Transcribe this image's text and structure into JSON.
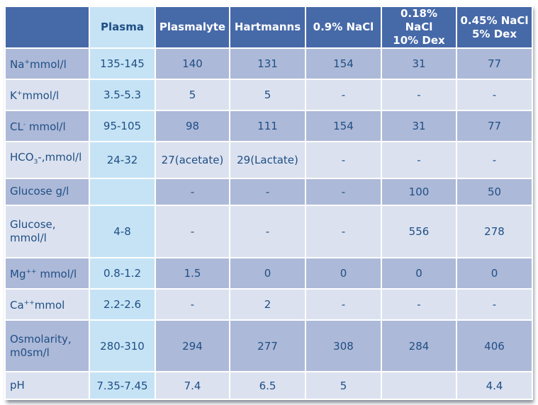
{
  "table": {
    "headers": [
      "",
      "Plasma",
      "Plasmalyte",
      "Hartmanns",
      "0.9% NaCl",
      "0.18% NaCl\n10% Dex",
      "0.45% NaCl\n5% Dex"
    ],
    "header_lines": {
      "h5a": "0.18% NaCl",
      "h5b": "10% Dex",
      "h6a": "0.45% NaCl",
      "h6b": "5% Dex"
    },
    "rows": [
      {
        "label_base": "Na",
        "label_sup": "+",
        "label_sub": "",
        "label_rest": "mmol/l",
        "cells": [
          "135-145",
          "140",
          "131",
          "154",
          "31",
          "77"
        ]
      },
      {
        "label_base": "K",
        "label_sup": "+",
        "label_sub": "",
        "label_rest": "mmol/l",
        "cells": [
          "3.5-5.3",
          "5",
          "5",
          "-",
          "-",
          "-"
        ]
      },
      {
        "label_base": "CL",
        "label_sup": "-",
        "label_sub": "",
        "label_rest": " mmol/l",
        "cells": [
          "95-105",
          "98",
          "111",
          "154",
          "31",
          "77"
        ]
      },
      {
        "label_base": "HCO",
        "label_sup": "",
        "label_sub": "3",
        "label_rest": "-,mmol/l",
        "cells": [
          "24-32",
          "27(acetate)",
          "29(Lactate)",
          "-",
          "-",
          "-"
        ]
      },
      {
        "label_base": "Glucose g/l",
        "label_sup": "",
        "label_sub": "",
        "label_rest": "",
        "cells": [
          "",
          "-",
          "-",
          "-",
          "100",
          "50"
        ]
      },
      {
        "label_base": "Glucose,",
        "label_sup": "",
        "label_sub": "",
        "label_rest": "mmol/l",
        "cells": [
          "4-8",
          "-",
          "-",
          "-",
          "556",
          "278"
        ]
      },
      {
        "label_base": "Mg",
        "label_sup": "++",
        "label_sub": "",
        "label_rest": " mmol/l",
        "cells": [
          "0.8-1.2",
          "1.5",
          "0",
          "0",
          "0",
          "0"
        ]
      },
      {
        "label_base": "Ca",
        "label_sup": "++",
        "label_sub": "",
        "label_rest": "mmol",
        "cells": [
          "2.2-2.6",
          "-",
          "2",
          "-",
          "-",
          "-"
        ]
      },
      {
        "label_base": "Osmolarity,",
        "label_sup": "",
        "label_sub": "",
        "label_rest": "m0sm/l",
        "cells": [
          "280-310",
          "294",
          "277",
          "308",
          "284",
          "406"
        ]
      },
      {
        "label_base": "pH",
        "label_sup": "",
        "label_sub": "",
        "label_rest": "",
        "cells": [
          "7.35-7.45",
          "7.4",
          "6.5",
          "5",
          "",
          "4.4"
        ]
      }
    ]
  },
  "colors": {
    "header_bg": "#4669a8",
    "plasma_col_bg": "#c5e3f5",
    "row_dark": "#adb9d8",
    "row_light": "#dbe1ef",
    "text": "#1f4f85"
  }
}
